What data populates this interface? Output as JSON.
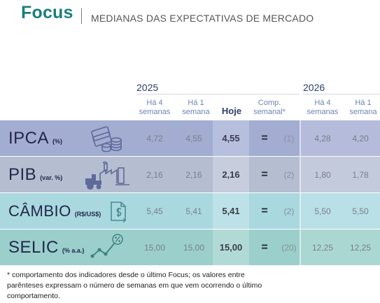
{
  "header": {
    "brand": "Focus",
    "subtitle": "MEDIANAS DAS EXPECTATIVAS DE MERCADO"
  },
  "years": {
    "left": "2025",
    "right": "2026"
  },
  "columns": {
    "ha4_line1": "Há 4",
    "ha4_line2": "semanas",
    "ha1_line1": "Há 1",
    "ha1_line2": "semana",
    "hoje": "Hoje",
    "comp_line1": "Comp.",
    "comp_line2": "semanal*"
  },
  "rows": [
    {
      "name": "IPCA",
      "unit": "(%)",
      "ha4": "4,72",
      "ha1": "4,55",
      "hoje": "4,55",
      "comp": "=",
      "weeks": "(1)",
      "y26_ha4": "4,28",
      "y26_ha1": "4,20",
      "color": "#a3acd1",
      "hoje_color": "#b7bfde",
      "right_color": "#b4bbdb",
      "icon": "coins-icon"
    },
    {
      "name": "PIB",
      "unit": "(var. %)",
      "ha4": "2,16",
      "ha1": "2,16",
      "hoje": "2,16",
      "comp": "=",
      "weeks": "(2)",
      "y26_ha4": "1,80",
      "y26_ha1": "1,78",
      "color": "#b5bdd0",
      "hoje_color": "#c6cddd",
      "right_color": "#c3cadb",
      "icon": "factory-tractor-icon"
    },
    {
      "name": "CÂMBIO",
      "unit": "(R$/US$)",
      "ha4": "5,45",
      "ha1": "5,41",
      "hoje": "5,41",
      "comp": "=",
      "weeks": "(2)",
      "y26_ha4": "5,50",
      "y26_ha1": "5,50",
      "color": "#a9d8df",
      "hoje_color": "#bce2e8",
      "right_color": "#b8e0e6",
      "icon": "dollar-doc-icon"
    },
    {
      "name": "SELIC",
      "unit": "(% a.a.)",
      "ha4": "15,00",
      "ha1": "15,00",
      "hoje": "15,00",
      "comp": "=",
      "weeks": "(20)",
      "y26_ha4": "12,25",
      "y26_ha1": "12,25",
      "color": "#9acfcb",
      "hoje_color": "#b1dad7",
      "right_color": "#abd7d3",
      "icon": "trend-percent-icon"
    }
  ],
  "footnote": "* comportamento dos indicadores desde o último Focus; os valores entre parênteses expressam o número de semanas em que vem ocorrendo o último comportamento."
}
